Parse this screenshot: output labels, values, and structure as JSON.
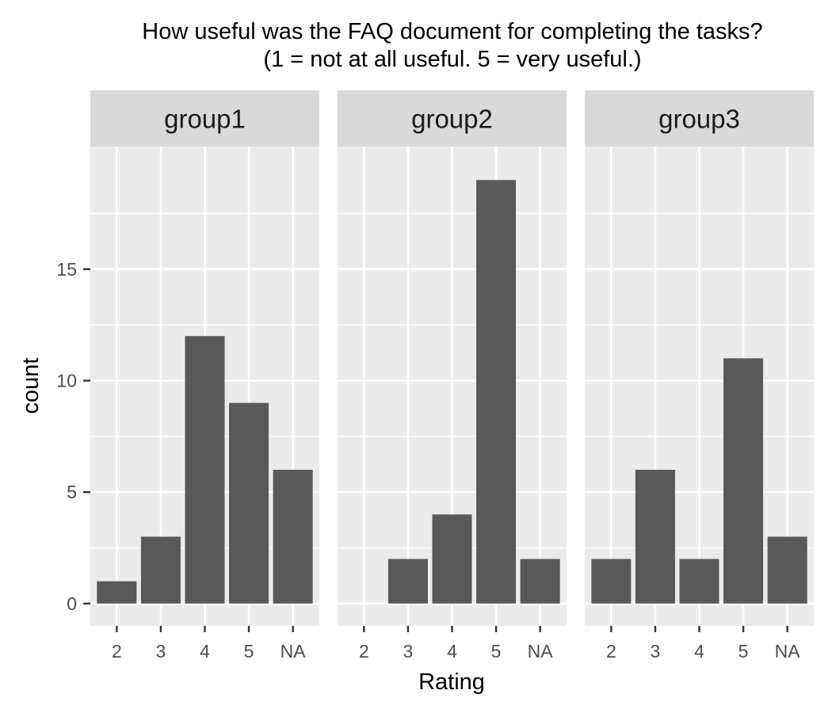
{
  "chart_data": {
    "type": "bar",
    "title": "How useful was the FAQ document for completing the tasks?",
    "subtitle": "(1 = not at all useful. 5 = very useful.)",
    "xlabel": "Rating",
    "ylabel": "count",
    "categories": [
      "2",
      "3",
      "4",
      "5",
      "NA"
    ],
    "ylim": [
      -1,
      20.5
    ],
    "yticks": [
      0,
      5,
      10,
      15
    ],
    "grid": true,
    "legend": "none",
    "colors": {
      "bar": "#595959",
      "panel_background": "#ebebeb",
      "strip_background": "#d9d9d9",
      "gridline": "#ffffff"
    },
    "facets": [
      {
        "name": "group1",
        "values": [
          1,
          3,
          12,
          9,
          6
        ]
      },
      {
        "name": "group2",
        "values": [
          0,
          2,
          4,
          19,
          2
        ]
      },
      {
        "name": "group3",
        "values": [
          2,
          6,
          2,
          11,
          3
        ]
      }
    ]
  }
}
